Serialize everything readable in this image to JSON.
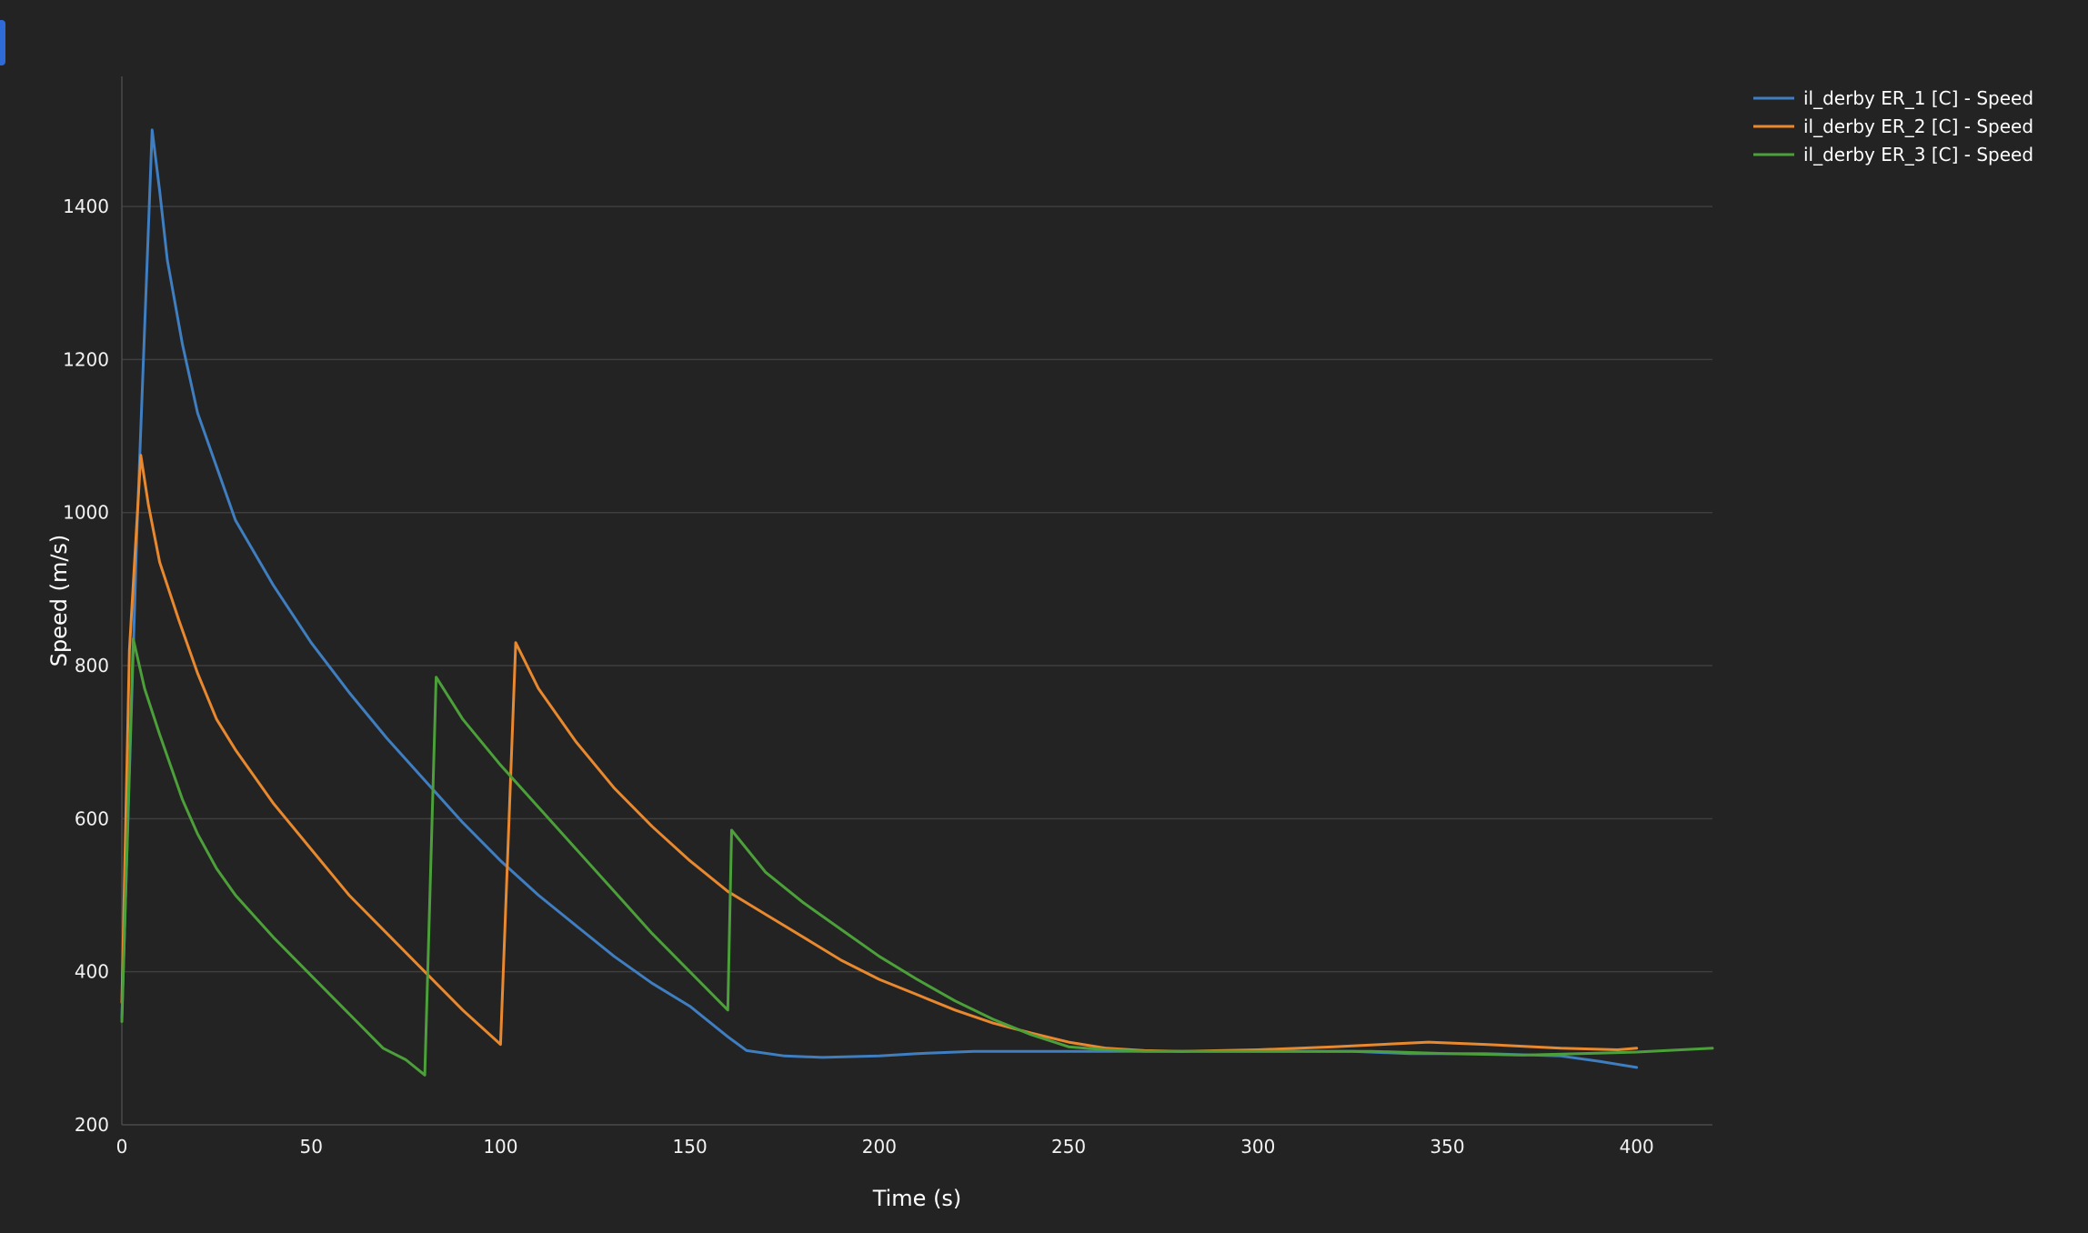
{
  "chart_data": {
    "type": "line",
    "xlabel": "Time (s)",
    "ylabel": "Speed (m/s)",
    "xlim": [
      0,
      420
    ],
    "ylim": [
      200,
      1570
    ],
    "xticks": [
      0,
      50,
      100,
      150,
      200,
      250,
      300,
      350,
      400
    ],
    "yticks": [
      200,
      400,
      600,
      800,
      1000,
      1200,
      1400
    ],
    "grid": true,
    "legend_position": "top-right",
    "series": [
      {
        "name": "il_derby ER_1 [C] - Speed",
        "color": "#3f7ec0",
        "x": [
          0,
          4,
          8,
          10,
          12,
          16,
          20,
          30,
          40,
          50,
          60,
          70,
          80,
          90,
          100,
          110,
          120,
          130,
          140,
          150,
          155,
          160,
          165,
          175,
          185,
          200,
          210,
          225,
          250,
          275,
          300,
          325,
          340,
          360,
          380,
          390,
          400
        ],
        "y": [
          340,
          980,
          1500,
          1420,
          1330,
          1220,
          1130,
          990,
          905,
          830,
          765,
          705,
          650,
          595,
          545,
          500,
          460,
          420,
          385,
          355,
          335,
          315,
          297,
          290,
          288,
          290,
          293,
          296,
          296,
          296,
          296,
          296,
          293,
          293,
          290,
          283,
          275
        ]
      },
      {
        "name": "il_derby ER_2 [C] - Speed",
        "color": "#e8882f",
        "x": [
          0,
          2,
          5,
          7,
          10,
          15,
          20,
          25,
          30,
          40,
          50,
          60,
          70,
          80,
          90,
          100,
          104,
          110,
          120,
          130,
          140,
          150,
          160,
          170,
          180,
          190,
          200,
          210,
          220,
          230,
          240,
          250,
          260,
          270,
          280,
          300,
          320,
          345,
          360,
          380,
          395,
          400
        ],
        "y": [
          360,
          820,
          1075,
          1010,
          935,
          860,
          790,
          730,
          690,
          620,
          560,
          500,
          450,
          400,
          350,
          305,
          830,
          770,
          700,
          640,
          590,
          545,
          505,
          475,
          445,
          415,
          390,
          370,
          350,
          333,
          320,
          308,
          300,
          297,
          296,
          298,
          302,
          308,
          305,
          300,
          298,
          300
        ]
      },
      {
        "name": "il_derby ER_3 [C] - Speed",
        "color": "#4ca03a",
        "x": [
          0,
          3,
          6,
          10,
          16,
          20,
          25,
          30,
          40,
          50,
          60,
          69,
          75,
          80,
          83,
          90,
          100,
          110,
          120,
          130,
          140,
          150,
          160,
          161,
          170,
          180,
          190,
          200,
          210,
          220,
          230,
          240,
          250,
          260,
          270,
          300,
          330,
          350,
          370,
          400,
          420
        ],
        "y": [
          335,
          835,
          770,
          710,
          625,
          580,
          535,
          500,
          445,
          395,
          345,
          300,
          285,
          265,
          785,
          730,
          670,
          615,
          560,
          505,
          450,
          400,
          350,
          585,
          530,
          490,
          455,
          420,
          390,
          362,
          338,
          318,
          302,
          298,
          296,
          296,
          296,
          293,
          291,
          295,
          300
        ]
      }
    ]
  }
}
